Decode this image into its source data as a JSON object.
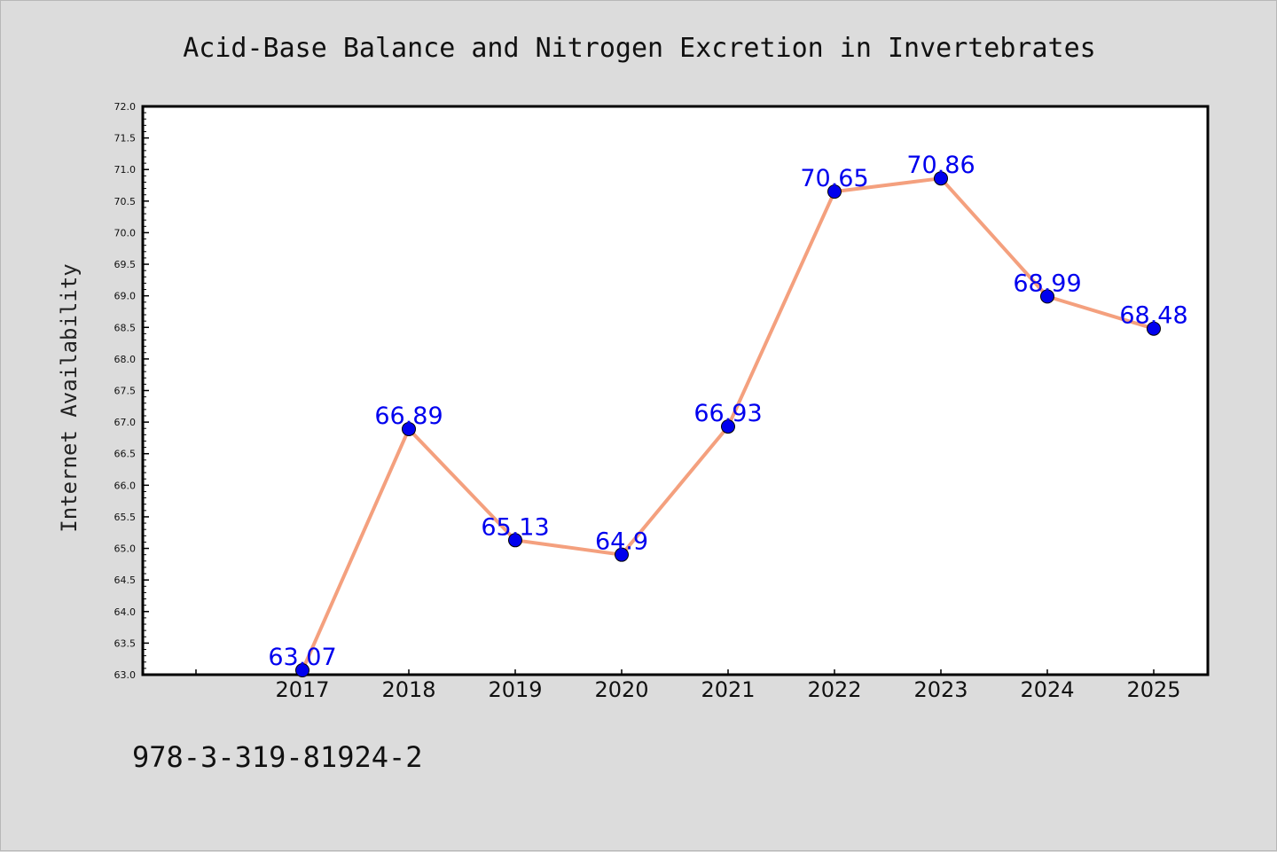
{
  "chart_data": {
    "type": "line",
    "title": "Acid-Base Balance and Nitrogen Excretion in Invertebrates",
    "xlabel": "",
    "ylabel": "Internet Availability",
    "categories": [
      "2017",
      "2018",
      "2019",
      "2020",
      "2021",
      "2022",
      "2023",
      "2024",
      "2025"
    ],
    "series": [
      {
        "values": [
          63.07,
          66.89,
          65.13,
          64.9,
          66.93,
          70.65,
          70.86,
          68.99,
          68.48
        ],
        "labels": [
          "63.07",
          "66.89",
          "65.13",
          "64.9",
          "66.93",
          "70.65",
          "70.86",
          "68.99",
          "68.48"
        ]
      }
    ],
    "yticks": [
      "63.0",
      "63.5",
      "64.0",
      "64.5",
      "65.0",
      "65.5",
      "66.0",
      "66.5",
      "67.0",
      "67.5",
      "68.0",
      "68.5",
      "69.0",
      "69.5",
      "70.0",
      "70.5",
      "71.0",
      "71.5",
      "72.0"
    ],
    "ylim": [
      63.0,
      72.0
    ],
    "grid": false,
    "legend": "none",
    "colors": {
      "line": "#f4a07e",
      "marker": "#0000ee",
      "label": "#0000ee",
      "background": "#dcdcdc",
      "plot_background": "#ffffff"
    }
  },
  "footer": {
    "isbn": "978-3-319-81924-2"
  }
}
